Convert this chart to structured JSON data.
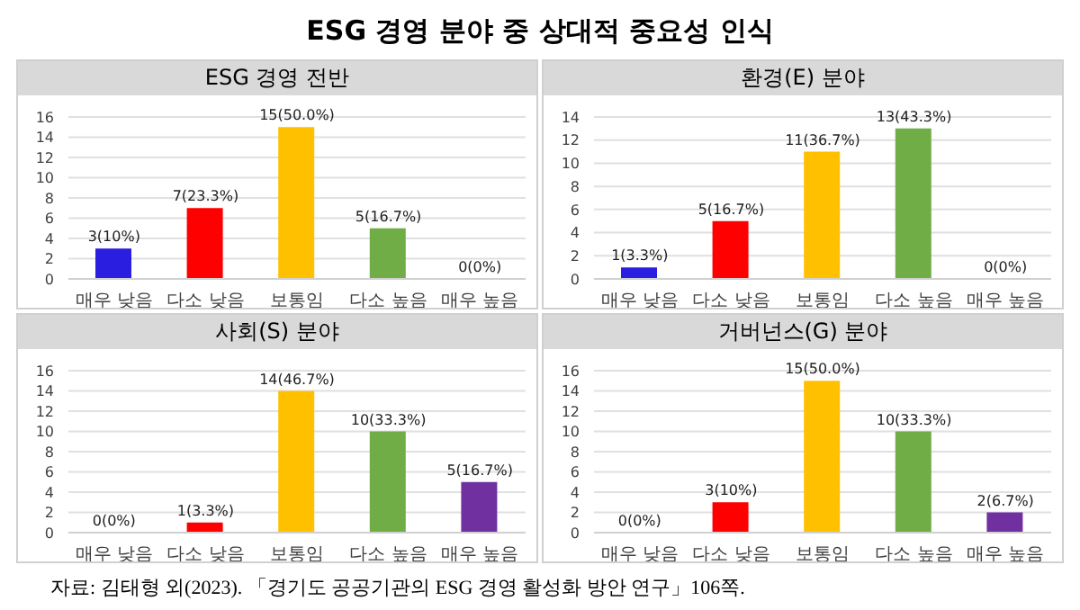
{
  "chart_data": [
    {
      "type": "other",
      "title": "ESG 경영 분야 중 상대적 중요성 인식",
      "annotations": [
        "자료: 김태형 외(2023). 「경기도 공공기관의 ESG 경영 활성화 방안 연구」106쪽."
      ]
    },
    {
      "type": "bar",
      "title": "ESG 경영 전반",
      "categories": [
        "매우 낮음",
        "다소 낮음",
        "보통임",
        "다소 높음",
        "매우 높음"
      ],
      "values": [
        3,
        7,
        15,
        5,
        0
      ],
      "value_labels": [
        "3(10%)",
        "7(23.3%)",
        "15(50.0%)",
        "5(16.7%)",
        "0(0%)"
      ],
      "colors": [
        "#2a1fe0",
        "#ff0000",
        "#ffc000",
        "#70ad47",
        "#7030a0"
      ],
      "ylim": [
        0,
        16
      ],
      "yticks": [
        0,
        2,
        4,
        6,
        8,
        10,
        12,
        14,
        16
      ],
      "grid": "y",
      "legend": false
    },
    {
      "type": "bar",
      "title": "환경(E) 분야",
      "categories": [
        "매우 낮음",
        "다소 낮음",
        "보통임",
        "다소 높음",
        "매우 높음"
      ],
      "values": [
        1,
        5,
        11,
        13,
        0
      ],
      "value_labels": [
        "1(3.3%)",
        "5(16.7%)",
        "11(36.7%)",
        "13(43.3%)",
        "0(0%)"
      ],
      "colors": [
        "#2a1fe0",
        "#ff0000",
        "#ffc000",
        "#70ad47",
        "#7030a0"
      ],
      "ylim": [
        0,
        14
      ],
      "yticks": [
        0,
        2,
        4,
        6,
        8,
        10,
        12,
        14
      ],
      "grid": "y",
      "legend": false
    },
    {
      "type": "bar",
      "title": "사회(S) 분야",
      "categories": [
        "매우 낮음",
        "다소 낮음",
        "보통임",
        "다소 높음",
        "매우 높음"
      ],
      "values": [
        0,
        1,
        14,
        10,
        5
      ],
      "value_labels": [
        "0(0%)",
        "1(3.3%)",
        "14(46.7%)",
        "10(33.3%)",
        "5(16.7%)"
      ],
      "colors": [
        "#2a1fe0",
        "#ff0000",
        "#ffc000",
        "#70ad47",
        "#7030a0"
      ],
      "ylim": [
        0,
        16
      ],
      "yticks": [
        0,
        2,
        4,
        6,
        8,
        10,
        12,
        14,
        16
      ],
      "grid": "y",
      "legend": false
    },
    {
      "type": "bar",
      "title": "거버넌스(G) 분야",
      "categories": [
        "매우 낮음",
        "다소 낮음",
        "보통임",
        "다소 높음",
        "매우 높음"
      ],
      "values": [
        0,
        3,
        15,
        10,
        2
      ],
      "value_labels": [
        "0(0%)",
        "3(10%)",
        "15(50.0%)",
        "10(33.3%)",
        "2(6.7%)"
      ],
      "colors": [
        "#2a1fe0",
        "#ff0000",
        "#ffc000",
        "#70ad47",
        "#7030a0"
      ],
      "ylim": [
        0,
        16
      ],
      "yticks": [
        0,
        2,
        4,
        6,
        8,
        10,
        12,
        14,
        16
      ],
      "grid": "y",
      "legend": false
    }
  ]
}
